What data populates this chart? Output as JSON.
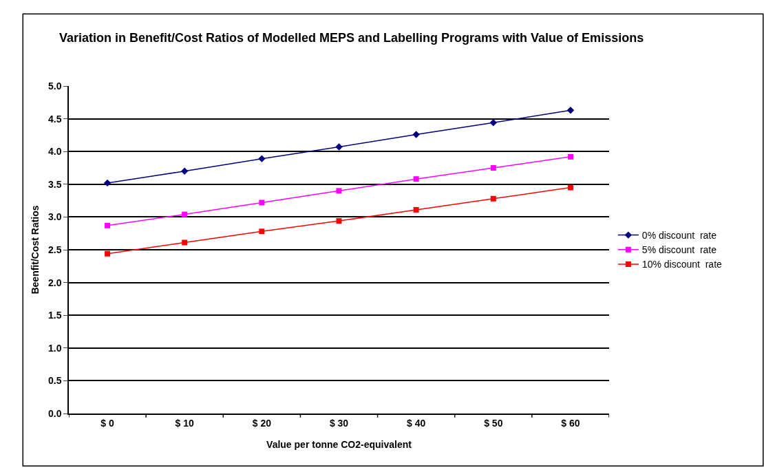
{
  "chart_data": {
    "type": "line",
    "title": "Variation in Benefit/Cost Ratios of Modelled MEPS and Labelling Programs with Value of Emissions",
    "xlabel": "Value per tonne CO2-equivalent",
    "ylabel": "Beenfit/Cost Ratios",
    "categories": [
      "$ 0",
      "$ 10",
      "$ 20",
      "$ 30",
      "$ 40",
      "$ 50",
      "$ 60"
    ],
    "series": [
      {
        "name": "0% discount  rate",
        "color": "#000080",
        "marker": "diamond",
        "values": [
          3.52,
          3.7,
          3.89,
          4.07,
          4.26,
          4.44,
          4.63
        ]
      },
      {
        "name": "5% discount  rate",
        "color": "#ff00ff",
        "marker": "square",
        "values": [
          2.87,
          3.04,
          3.22,
          3.4,
          3.58,
          3.75,
          3.92
        ]
      },
      {
        "name": "10% discount  rate",
        "color": "#ff0000",
        "marker": "square",
        "values": [
          2.44,
          2.61,
          2.78,
          2.94,
          3.11,
          3.28,
          3.45
        ]
      }
    ],
    "ylim": [
      0,
      5
    ],
    "yticks": [
      {
        "value": 0,
        "label": "0.0"
      },
      {
        "value": 0.5,
        "label": "0.5"
      },
      {
        "value": 1,
        "label": "1.0"
      },
      {
        "value": 1.5,
        "label": "1.5"
      },
      {
        "value": 2,
        "label": "2.0"
      },
      {
        "value": 2.5,
        "label": "2.5"
      },
      {
        "value": 3,
        "label": "3.0"
      },
      {
        "value": 3.5,
        "label": "3.5"
      },
      {
        "value": 4,
        "label": "4.0"
      },
      {
        "value": 4.5,
        "label": "4.5"
      },
      {
        "value": 5,
        "label": "5.0"
      }
    ],
    "grid": "y",
    "legend": "right",
    "line_style": "solid"
  }
}
